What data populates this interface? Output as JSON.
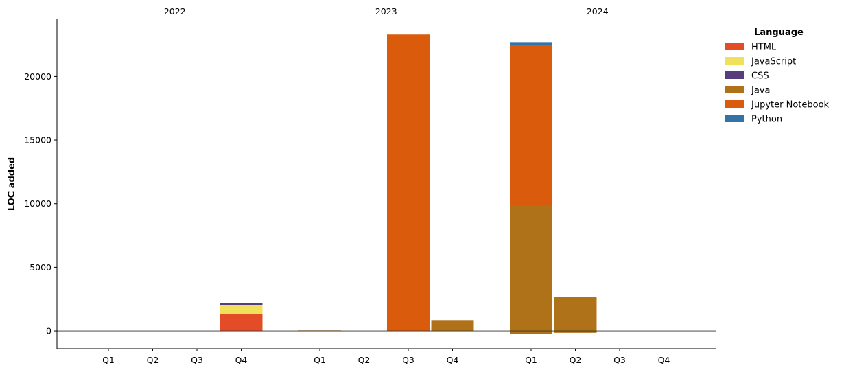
{
  "chart_data": {
    "type": "bar",
    "stacked": true,
    "title": "",
    "xlabel": "",
    "ylabel": "LOC added",
    "ylim": [
      -1400,
      24500
    ],
    "yticks": [
      0,
      5000,
      10000,
      15000,
      20000
    ],
    "zero_line": true,
    "grid": false,
    "groups": [
      "2022",
      "2023",
      "2024"
    ],
    "categories": [
      "Q1",
      "Q2",
      "Q3",
      "Q4"
    ],
    "legend": {
      "title": "Language",
      "placement": "top-right-outside"
    },
    "series": [
      {
        "name": "HTML",
        "color": "#e34c26",
        "values": [
          [
            0,
            0,
            0,
            1350
          ],
          [
            0,
            0,
            0,
            0
          ],
          [
            0,
            0,
            0,
            0
          ]
        ]
      },
      {
        "name": "JavaScript",
        "color": "#f1e05a",
        "values": [
          [
            0,
            0,
            0,
            650
          ],
          [
            0,
            0,
            0,
            0
          ],
          [
            0,
            0,
            0,
            0
          ]
        ]
      },
      {
        "name": "CSS",
        "color": "#563d7c",
        "values": [
          [
            0,
            0,
            0,
            200
          ],
          [
            0,
            0,
            0,
            0
          ],
          [
            0,
            0,
            0,
            0
          ]
        ]
      },
      {
        "name": "Java",
        "color": "#b07219",
        "values": [
          [
            0,
            0,
            0,
            0
          ],
          [
            40,
            0,
            0,
            850
          ],
          [
            9900,
            2650,
            0,
            0
          ]
        ]
      },
      {
        "name": "Jupyter Notebook",
        "color": "#da5b0b",
        "values": [
          [
            0,
            0,
            0,
            0
          ],
          [
            0,
            0,
            23300,
            0
          ],
          [
            12600,
            0,
            0,
            0
          ]
        ]
      },
      {
        "name": "Python",
        "color": "#3572a5",
        "values": [
          [
            0,
            0,
            0,
            0
          ],
          [
            0,
            0,
            0,
            0
          ],
          [
            200,
            0,
            0,
            0
          ]
        ]
      }
    ],
    "negative_values": [
      {
        "series": "Java",
        "group": "2024",
        "category": "Q1",
        "value": -250
      },
      {
        "series": "Java",
        "group": "2024",
        "category": "Q2",
        "value": -150
      }
    ]
  }
}
